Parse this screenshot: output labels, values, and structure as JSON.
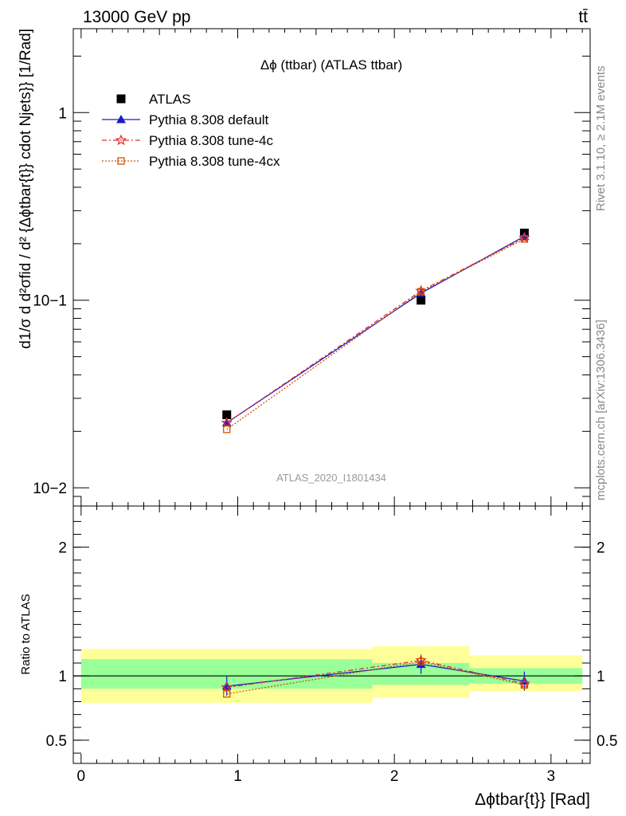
{
  "header": {
    "left": "13000 GeV pp",
    "right": "tt̄"
  },
  "side_labels": {
    "rivet": "Rivet 3.1.10, ≥ 2.1M events",
    "mcplots": "mcplots.cern.ch [arXiv:1306.3436]"
  },
  "colors": {
    "atlas": "#000000",
    "default": "#1a1acc",
    "tune4c": "#e03030",
    "tune4cx": "#cc5500",
    "band_inner": "#99ff99",
    "band_outer": "#ffff99"
  },
  "chart_data": [
    {
      "type": "line",
      "title": "Δϕ (ttbar) (ATLAS ttbar)",
      "ylabel": "d1/σ d d²σfid / d² {Δϕtbar{t}} cdot Njets}} [1/Rad]",
      "yscale": "log",
      "ylim": [
        0.008,
        2.8
      ],
      "xlim": [
        -0.05,
        3.25
      ],
      "y_ticks": [
        {
          "value": 1,
          "label": "1"
        },
        {
          "value": 0.1,
          "label": "10−1"
        },
        {
          "value": 0.01,
          "label": "10−2"
        }
      ],
      "watermark": "ATLAS_2020_I1801434",
      "legend_position": "top-left",
      "series": [
        {
          "name": "ATLAS",
          "marker": "square",
          "x": [
            0.93,
            2.17,
            2.83
          ],
          "y": [
            0.0245,
            0.1,
            0.228
          ]
        },
        {
          "name": "Pythia 8.308 default",
          "marker": "triangle",
          "x": [
            0.93,
            2.17,
            2.83
          ],
          "y": [
            0.0222,
            0.109,
            0.219
          ]
        },
        {
          "name": "Pythia 8.308 tune-4c",
          "marker": "star",
          "x": [
            0.93,
            2.17,
            2.83
          ],
          "y": [
            0.0222,
            0.112,
            0.215
          ]
        },
        {
          "name": "Pythia 8.308 tune-4cx",
          "marker": "open-square",
          "x": [
            0.93,
            2.17,
            2.83
          ],
          "y": [
            0.0205,
            0.111,
            0.212
          ]
        }
      ]
    },
    {
      "type": "line",
      "ylabel": "Ratio to ATLAS",
      "xlabel": "Δϕtbar{t}} [Rad]",
      "ylim": [
        0.32,
        2.32
      ],
      "xlim": [
        -0.05,
        3.25
      ],
      "y_ticks": [
        {
          "value": 0.5,
          "label": "0.5"
        },
        {
          "value": 1,
          "label": "1"
        },
        {
          "value": 2,
          "label": "2"
        }
      ],
      "x_ticks": [
        {
          "value": 0,
          "label": "0"
        },
        {
          "value": 1,
          "label": "1"
        },
        {
          "value": 2,
          "label": "2"
        },
        {
          "value": 3,
          "label": "3"
        }
      ],
      "reference_line": 1,
      "bands": [
        {
          "x_range": [
            0,
            1.86
          ],
          "inner": [
            0.9,
            1.13
          ],
          "outer": [
            0.79,
            1.21
          ]
        },
        {
          "x_range": [
            1.86,
            2.48
          ],
          "inner": [
            0.93,
            1.1
          ],
          "outer": [
            0.83,
            1.23
          ]
        },
        {
          "x_range": [
            2.48,
            3.2
          ],
          "inner": [
            0.94,
            1.06
          ],
          "outer": [
            0.88,
            1.16
          ]
        }
      ],
      "series": [
        {
          "name": "Pythia 8.308 default",
          "marker": "triangle",
          "x": [
            0.93,
            2.17,
            2.83
          ],
          "y": [
            0.92,
            1.09,
            0.96
          ]
        },
        {
          "name": "Pythia 8.308 tune-4c",
          "marker": "star",
          "x": [
            0.93,
            2.17,
            2.83
          ],
          "y": [
            0.91,
            1.12,
            0.94
          ]
        },
        {
          "name": "Pythia 8.308 tune-4cx",
          "marker": "open-square",
          "x": [
            0.93,
            2.17,
            2.83
          ],
          "y": [
            0.86,
            1.11,
            0.93
          ]
        }
      ]
    }
  ]
}
